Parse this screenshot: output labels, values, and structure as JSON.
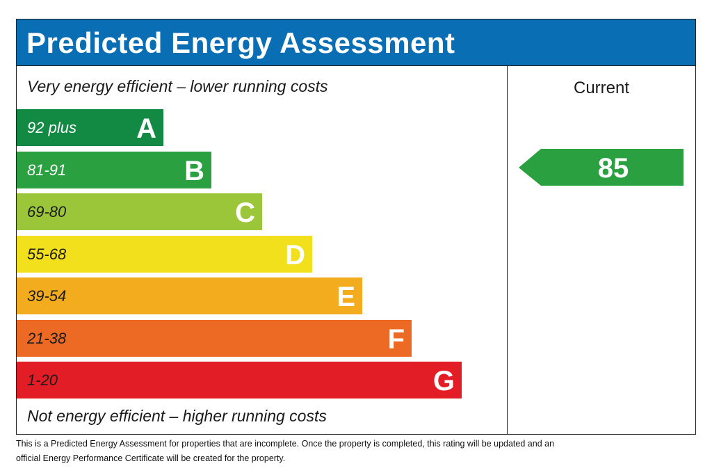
{
  "header": {
    "title": "Predicted Energy Assessment"
  },
  "top_note": "Very energy efficient – lower running costs",
  "bottom_note": "Not energy efficient – higher running costs",
  "bands": [
    {
      "range": "92 plus",
      "letter": "A",
      "color": "#138a43",
      "text_color": "#ffffff"
    },
    {
      "range": "81-91",
      "letter": "B",
      "color": "#2aa040",
      "text_color": "#ffffff"
    },
    {
      "range": "69-80",
      "letter": "C",
      "color": "#9cc63a",
      "text_color": "#1a1a1a"
    },
    {
      "range": "55-68",
      "letter": "D",
      "color": "#f2e01c",
      "text_color": "#1a1a1a"
    },
    {
      "range": "39-54",
      "letter": "E",
      "color": "#f4ac1f",
      "text_color": "#1a1a1a"
    },
    {
      "range": "21-38",
      "letter": "F",
      "color": "#ec6a24",
      "text_color": "#1a1a1a"
    },
    {
      "range": "1-20",
      "letter": "G",
      "color": "#e31d25",
      "text_color": "#1a1a1a"
    }
  ],
  "current": {
    "label": "Current",
    "rating": "85",
    "color": "#2aa040"
  },
  "footnote": [
    "This is a Predicted Energy Assessment for properties that are incomplete. Once the property is completed, this rating will be updated and an",
    "official Energy Performance Certificate will be created for the property."
  ]
}
